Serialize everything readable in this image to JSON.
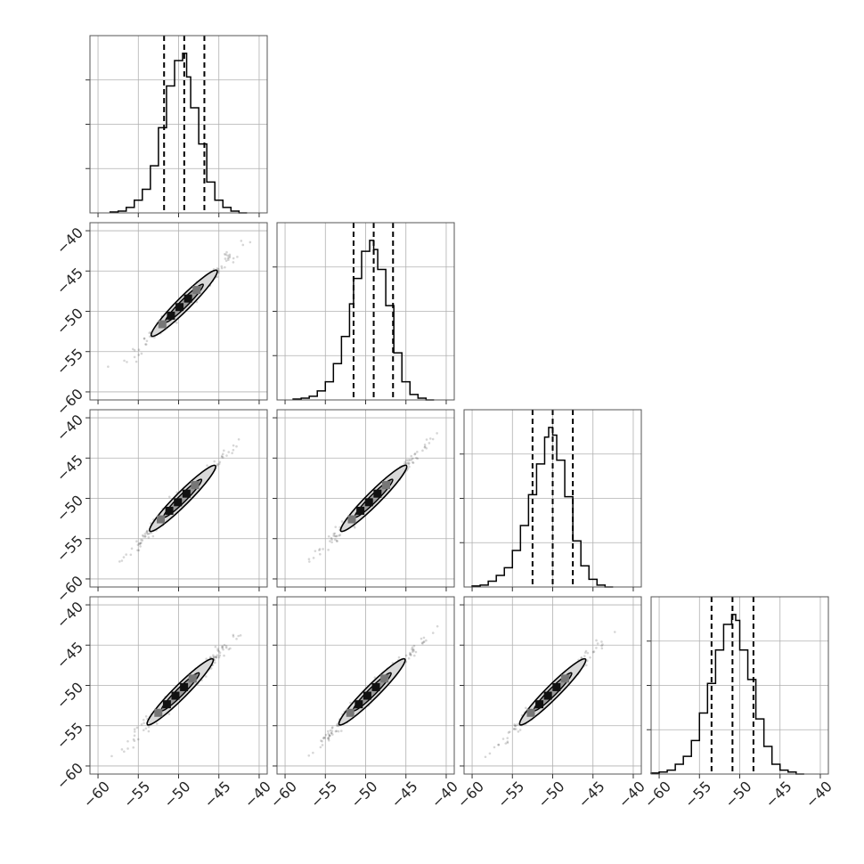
{
  "chart_data": {
    "type": "corner",
    "n_params": 4,
    "xlim": [
      -61,
      -39
    ],
    "ylim": [
      -61,
      -39
    ],
    "grid": true,
    "tick_values": [
      -60,
      -55,
      -50,
      -45,
      -40
    ],
    "tick_labels": [
      "−60",
      "−55",
      "−50",
      "−45",
      "−40"
    ],
    "histograms": [
      {
        "param_index": 0,
        "quantiles": [
          -51.8,
          -49.3,
          -46.8
        ],
        "bin_edges": [
          -58.5,
          -57.5,
          -56.5,
          -55.5,
          -54.5,
          -53.5,
          -52.5,
          -51.5,
          -50.5,
          -49.5,
          -49.0,
          -48.5,
          -47.5,
          -46.5,
          -45.5,
          -44.5,
          -43.5,
          -42.5,
          -41.5
        ],
        "counts": [
          0.5,
          1,
          3,
          7,
          13,
          26,
          47,
          70,
          84,
          88,
          75,
          58,
          38,
          17,
          7,
          3,
          1,
          0
        ]
      },
      {
        "param_index": 1,
        "quantiles": [
          -51.5,
          -49.0,
          -46.6
        ],
        "bin_edges": [
          -59.0,
          -58.0,
          -57.0,
          -56.0,
          -55.0,
          -54.0,
          -53.0,
          -52.0,
          -51.5,
          -50.5,
          -49.5,
          -49.0,
          -48.5,
          -47.5,
          -46.5,
          -45.5,
          -44.5,
          -43.5,
          -42.5,
          -41.5
        ],
        "counts": [
          0.5,
          1,
          2,
          5,
          10,
          20,
          35,
          53,
          67,
          82,
          88,
          83,
          72,
          52,
          26,
          10,
          3,
          1,
          0
        ]
      },
      {
        "param_index": 2,
        "quantiles": [
          -52.5,
          -50.0,
          -47.5
        ],
        "bin_edges": [
          -60.0,
          -59.0,
          -58.0,
          -57.0,
          -56.0,
          -55.0,
          -54.0,
          -53.0,
          -52.0,
          -51.0,
          -50.5,
          -50.0,
          -49.5,
          -48.5,
          -47.5,
          -46.5,
          -45.5,
          -44.5,
          -43.5,
          -42.5
        ],
        "counts": [
          0.5,
          1,
          3,
          6,
          10,
          19,
          32,
          48,
          64,
          78,
          83,
          79,
          66,
          47,
          24,
          11,
          4,
          1,
          0
        ]
      },
      {
        "param_index": 3,
        "quantiles": [
          -53.5,
          -50.9,
          -48.3
        ],
        "bin_edges": [
          -61.0,
          -60.0,
          -59.0,
          -58.0,
          -57.0,
          -56.0,
          -55.0,
          -54.0,
          -53.0,
          -52.0,
          -51.0,
          -50.5,
          -50.0,
          -49.0,
          -48.0,
          -47.0,
          -46.0,
          -45.0,
          -44.0,
          -43.0,
          -42.0
        ],
        "counts": [
          0.5,
          1,
          2,
          5,
          9,
          17,
          31,
          46,
          63,
          76,
          81,
          78,
          63,
          48,
          28,
          14,
          5,
          2,
          1,
          0
        ]
      }
    ],
    "scatter_panels": [
      {
        "row": 1,
        "col": 0,
        "center": [
          -49.3,
          -49.0
        ],
        "extent": [
          -59,
          -41
        ]
      },
      {
        "row": 2,
        "col": 0,
        "center": [
          -49.5,
          -50.0
        ],
        "extent": [
          -59,
          -41
        ]
      },
      {
        "row": 2,
        "col": 1,
        "center": [
          -49.0,
          -50.0
        ],
        "extent": [
          -60,
          -41
        ]
      },
      {
        "row": 3,
        "col": 0,
        "center": [
          -49.8,
          -50.8
        ],
        "extent": [
          -59,
          -41
        ]
      },
      {
        "row": 3,
        "col": 1,
        "center": [
          -49.2,
          -50.8
        ],
        "extent": [
          -61,
          -41
        ]
      },
      {
        "row": 3,
        "col": 2,
        "center": [
          -50.0,
          -50.8
        ],
        "extent": [
          -60,
          -41
        ]
      }
    ],
    "colors": {
      "line": "#000000",
      "grid": "#b0b0b0",
      "contour_fill": "#d9d9d9",
      "density": "#1a1a1a"
    }
  }
}
